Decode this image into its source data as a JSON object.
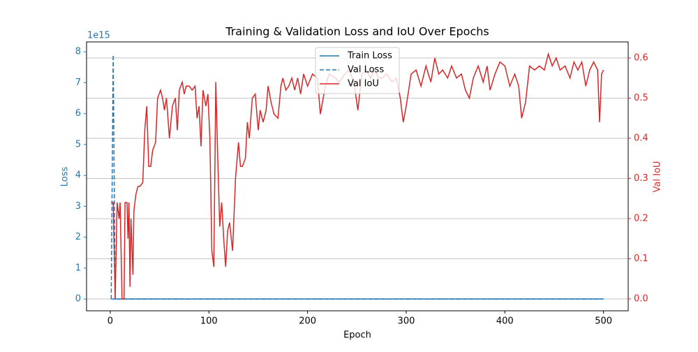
{
  "chart_data": {
    "type": "line",
    "title": "Training & Validation Loss and IoU Over Epochs",
    "xlabel": "Epoch",
    "ylabel": "Loss",
    "y2label": "Val IoU",
    "y_offset_label": "1e15",
    "xlim": [
      -24,
      525
    ],
    "xticks": [
      0,
      100,
      200,
      300,
      400,
      500
    ],
    "ylim": [
      -0.38,
      8.32
    ],
    "yticks": [
      0,
      1,
      2,
      3,
      4,
      5,
      6,
      7,
      8
    ],
    "y2lim": [
      -0.0296,
      0.64
    ],
    "y2ticks": [
      0.0,
      0.1,
      0.2,
      0.3,
      0.4,
      0.5,
      0.6
    ],
    "grid": "y2",
    "legend": "upper center",
    "series": [
      {
        "name": "Train Loss",
        "color": "#1f77b4",
        "dash": false,
        "x": [
          1,
          3,
          5,
          500
        ],
        "values": [
          0,
          0,
          0,
          0
        ]
      },
      {
        "name": "Val Loss",
        "color": "#1f77b4",
        "dash": true,
        "x": [
          1,
          3,
          5,
          500
        ],
        "values": [
          0,
          7.9,
          0,
          0
        ]
      },
      {
        "name": "Val IoU",
        "color": "#d62728",
        "dash": false,
        "axis": "y2",
        "x": [
          1,
          3,
          5,
          7,
          9,
          10,
          12,
          14,
          15,
          17,
          18,
          19,
          20,
          21,
          23,
          24,
          26,
          28,
          30,
          33,
          35,
          37,
          39,
          41,
          43,
          46,
          48,
          51,
          53,
          55,
          57,
          60,
          63,
          66,
          68,
          70,
          73,
          75,
          77,
          80,
          83,
          86,
          88,
          90,
          92,
          94,
          97,
          99,
          101,
          103,
          105,
          107,
          109,
          111,
          113,
          115,
          117,
          119,
          121,
          124,
          127,
          130,
          132,
          134,
          137,
          139,
          141,
          144,
          147,
          150,
          152,
          155,
          158,
          160,
          163,
          166,
          170,
          173,
          175,
          178,
          181,
          184,
          187,
          190,
          193,
          196,
          200,
          205,
          210,
          213,
          218,
          222,
          228,
          232,
          238,
          242,
          247,
          251,
          255,
          260,
          264,
          268,
          272,
          276,
          280,
          286,
          290,
          294,
          297,
          300,
          305,
          310,
          315,
          320,
          325,
          329,
          333,
          337,
          342,
          346,
          351,
          356,
          360,
          364,
          368,
          373,
          378,
          382,
          385,
          390,
          395,
          400,
          405,
          410,
          414,
          417,
          421,
          425,
          430,
          435,
          440,
          444,
          448,
          452,
          456,
          461,
          466,
          470,
          474,
          478,
          482,
          486,
          490,
          494,
          496,
          498,
          500
        ],
        "values": [
          0.24,
          0.24,
          0.0,
          0.24,
          0.2,
          0.24,
          0.0,
          0.0,
          0.24,
          0.24,
          0.15,
          0.24,
          0.03,
          0.2,
          0.06,
          0.22,
          0.26,
          0.28,
          0.28,
          0.29,
          0.42,
          0.48,
          0.33,
          0.33,
          0.37,
          0.39,
          0.5,
          0.52,
          0.5,
          0.47,
          0.5,
          0.4,
          0.48,
          0.5,
          0.42,
          0.52,
          0.54,
          0.51,
          0.53,
          0.53,
          0.52,
          0.53,
          0.45,
          0.48,
          0.38,
          0.52,
          0.48,
          0.51,
          0.4,
          0.12,
          0.08,
          0.54,
          0.35,
          0.18,
          0.24,
          0.15,
          0.08,
          0.17,
          0.19,
          0.12,
          0.3,
          0.39,
          0.33,
          0.33,
          0.35,
          0.44,
          0.4,
          0.5,
          0.51,
          0.42,
          0.47,
          0.44,
          0.47,
          0.53,
          0.49,
          0.46,
          0.45,
          0.53,
          0.55,
          0.52,
          0.53,
          0.55,
          0.52,
          0.55,
          0.51,
          0.56,
          0.53,
          0.56,
          0.55,
          0.46,
          0.53,
          0.56,
          0.55,
          0.54,
          0.56,
          0.57,
          0.54,
          0.47,
          0.56,
          0.57,
          0.55,
          0.57,
          0.55,
          0.55,
          0.56,
          0.54,
          0.55,
          0.5,
          0.44,
          0.48,
          0.56,
          0.57,
          0.53,
          0.58,
          0.54,
          0.6,
          0.56,
          0.57,
          0.55,
          0.58,
          0.55,
          0.56,
          0.52,
          0.5,
          0.55,
          0.58,
          0.54,
          0.58,
          0.52,
          0.56,
          0.59,
          0.58,
          0.53,
          0.56,
          0.53,
          0.45,
          0.49,
          0.58,
          0.57,
          0.58,
          0.57,
          0.61,
          0.58,
          0.6,
          0.57,
          0.58,
          0.55,
          0.59,
          0.57,
          0.59,
          0.53,
          0.57,
          0.59,
          0.57,
          0.44,
          0.56,
          0.57
        ]
      }
    ]
  }
}
